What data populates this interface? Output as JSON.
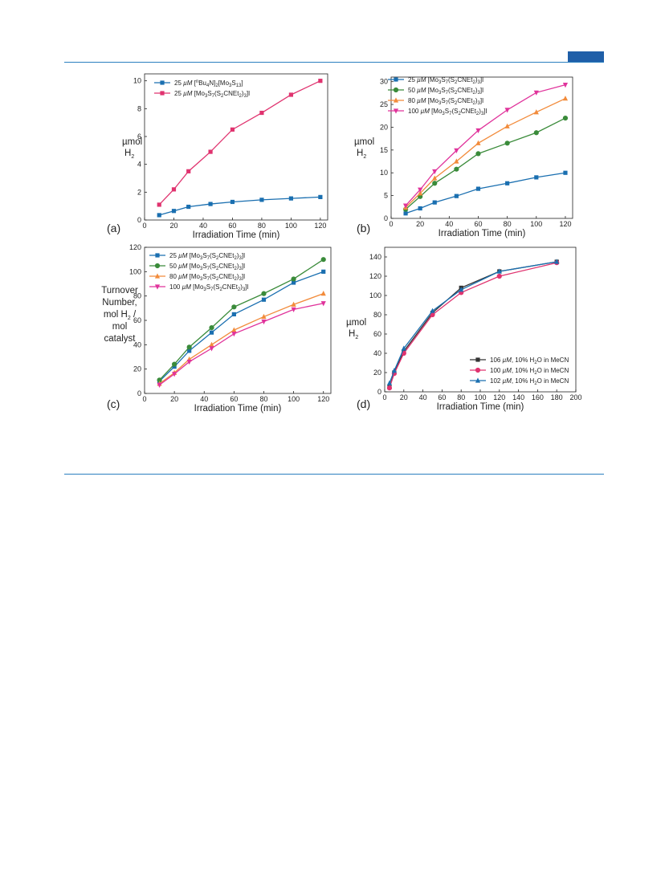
{
  "colors": {
    "accent": "#1f5fa8",
    "rule": "#2b7fbf"
  },
  "chart_data": [
    {
      "id": "a",
      "type": "line",
      "panel_label": "a",
      "xlabel": "Irradiation Time (min)",
      "ylabel_lines": [
        "µmol",
        "H",
        "2"
      ],
      "xlim": [
        0,
        125
      ],
      "ylim": [
        0,
        10.5
      ],
      "xticks": [
        0,
        20,
        40,
        60,
        80,
        100,
        120
      ],
      "yticks": [
        0,
        2,
        4,
        6,
        8,
        10
      ],
      "legend_position": "top-left",
      "series": [
        {
          "name": "25 µM [nBu4N]2[Mo3S13]",
          "legend_html": "25 <tspan font-style='italic'>µM</tspan> [<tspan font-size='6' dy='-3'>n</tspan><tspan dy='3'>Bu</tspan><tspan font-size='6' dy='2'>4</tspan><tspan dy='-2'>N]</tspan><tspan font-size='6' dy='2'>2</tspan><tspan dy='-2'>[Mo</tspan><tspan font-size='6' dy='2'>3</tspan><tspan dy='-2'>S</tspan><tspan font-size='6' dy='2'>13</tspan><tspan dy='-2'>]</tspan>",
          "color": "#1a6fb0",
          "marker": "square",
          "x": [
            10,
            20,
            30,
            45,
            60,
            80,
            100,
            120
          ],
          "y": [
            0.35,
            0.65,
            0.95,
            1.15,
            1.3,
            1.45,
            1.55,
            1.65
          ]
        },
        {
          "name": "25 µM [Mo3S7(S2CNEt2)3]I",
          "legend_html": "25 <tspan font-style='italic'>µM</tspan> [Mo<tspan font-size='6' dy='2'>3</tspan><tspan dy='-2'>S</tspan><tspan font-size='6' dy='2'>7</tspan><tspan dy='-2'>(S</tspan><tspan font-size='6' dy='2'>2</tspan><tspan dy='-2'>CNEt</tspan><tspan font-size='6' dy='2'>2</tspan><tspan dy='-2'>)</tspan><tspan font-size='6' dy='2'>3</tspan><tspan dy='-2'>]I</tspan>",
          "color": "#e0336f",
          "marker": "square",
          "x": [
            10,
            20,
            30,
            45,
            60,
            80,
            100,
            120
          ],
          "y": [
            1.1,
            2.2,
            3.5,
            4.9,
            6.5,
            7.7,
            9.0,
            10.0
          ]
        }
      ]
    },
    {
      "id": "b",
      "type": "line",
      "panel_label": "b",
      "xlabel": "Irradiation Time (min)",
      "ylabel_lines": [
        "µmol",
        "H",
        "2"
      ],
      "xlim": [
        0,
        125
      ],
      "ylim": [
        0,
        31
      ],
      "xticks": [
        0,
        20,
        40,
        60,
        80,
        100,
        120
      ],
      "yticks": [
        0,
        5,
        10,
        15,
        20,
        25,
        30
      ],
      "legend_position": "top-left",
      "series": [
        {
          "name": "25 µM [Mo3S7(S2CNEt2)3]I",
          "legend_html": "25 <tspan font-style='italic'>µM</tspan> [Mo<tspan font-size='6' dy='2'>3</tspan><tspan dy='-2'>S</tspan><tspan font-size='6' dy='2'>7</tspan><tspan dy='-2'>(S</tspan><tspan font-size='6' dy='2'>2</tspan><tspan dy='-2'>CNEt</tspan><tspan font-size='6' dy='2'>2</tspan><tspan dy='-2'>)</tspan><tspan font-size='6' dy='2'>3</tspan><tspan dy='-2'>]I</tspan>",
          "color": "#1a6fb0",
          "marker": "square",
          "x": [
            10,
            20,
            30,
            45,
            60,
            80,
            100,
            120
          ],
          "y": [
            1.1,
            2.2,
            3.5,
            4.9,
            6.5,
            7.7,
            9.0,
            10.0
          ]
        },
        {
          "name": "50 µM [Mo3S7(S2CNEt2)3]I",
          "legend_html": "50 <tspan font-style='italic'>µM</tspan> [Mo<tspan font-size='6' dy='2'>3</tspan><tspan dy='-2'>S</tspan><tspan font-size='6' dy='2'>7</tspan><tspan dy='-2'>(S</tspan><tspan font-size='6' dy='2'>2</tspan><tspan dy='-2'>CNEt</tspan><tspan font-size='6' dy='2'>2</tspan><tspan dy='-2'>)</tspan><tspan font-size='6' dy='2'>3</tspan><tspan dy='-2'>]I</tspan>",
          "color": "#3a8b3a",
          "marker": "circle",
          "x": [
            10,
            20,
            30,
            45,
            60,
            80,
            100,
            120
          ],
          "y": [
            2.0,
            4.8,
            7.7,
            10.8,
            14.2,
            16.5,
            18.8,
            22.0
          ]
        },
        {
          "name": "80 µM [Mo3S7(S2CNEt2)3]I",
          "legend_html": "80 <tspan font-style='italic'>µM</tspan> [Mo<tspan font-size='6' dy='2'>3</tspan><tspan dy='-2'>S</tspan><tspan font-size='6' dy='2'>7</tspan><tspan dy='-2'>(S</tspan><tspan font-size='6' dy='2'>2</tspan><tspan dy='-2'>CNEt</tspan><tspan font-size='6' dy='2'>2</tspan><tspan dy='-2'>)</tspan><tspan font-size='6' dy='2'>3</tspan><tspan dy='-2'>]I</tspan>",
          "color": "#f28b3b",
          "marker": "triangle",
          "x": [
            10,
            20,
            30,
            45,
            60,
            80,
            100,
            120
          ],
          "y": [
            2.4,
            5.5,
            8.8,
            12.5,
            16.5,
            20.2,
            23.3,
            26.3
          ]
        },
        {
          "name": "100 µM [Mo3S7(S2CNEt2)3]I",
          "legend_html": "100 <tspan font-style='italic'>µM</tspan> [Mo<tspan font-size='6' dy='2'>3</tspan><tspan dy='-2'>S</tspan><tspan font-size='6' dy='2'>7</tspan><tspan dy='-2'>(S</tspan><tspan font-size='6' dy='2'>2</tspan><tspan dy='-2'>CNEt</tspan><tspan font-size='6' dy='2'>2</tspan><tspan dy='-2'>)</tspan><tspan font-size='6' dy='2'>3</tspan><tspan dy='-2'>]I</tspan>",
          "color": "#e0339b",
          "marker": "triangle-down",
          "x": [
            10,
            20,
            30,
            45,
            60,
            80,
            100,
            120
          ],
          "y": [
            2.8,
            6.3,
            10.3,
            14.9,
            19.3,
            23.8,
            27.6,
            29.3
          ]
        }
      ]
    },
    {
      "id": "c",
      "type": "line",
      "panel_label": "c",
      "xlabel": "Irradiation Time (min)",
      "ylabel_lines": [
        "Turnover",
        "Number,",
        "mol H2 /",
        "mol",
        "catalyst"
      ],
      "xlim": [
        0,
        125
      ],
      "ylim": [
        0,
        120
      ],
      "xticks": [
        0,
        20,
        40,
        60,
        80,
        100,
        120
      ],
      "yticks": [
        0,
        20,
        40,
        60,
        80,
        100,
        120
      ],
      "legend_position": "top-left",
      "series": [
        {
          "name": "25 µM [Mo3S7(S2CNEt2)3]I",
          "legend_html": "25 <tspan font-style='italic'>µM</tspan> [Mo<tspan font-size='6' dy='2'>3</tspan><tspan dy='-2'>S</tspan><tspan font-size='6' dy='2'>7</tspan><tspan dy='-2'>(S</tspan><tspan font-size='6' dy='2'>2</tspan><tspan dy='-2'>CNEt</tspan><tspan font-size='6' dy='2'>2</tspan><tspan dy='-2'>)</tspan><tspan font-size='6' dy='2'>3</tspan><tspan dy='-2'>]I</tspan>",
          "color": "#1a6fb0",
          "marker": "square",
          "x": [
            10,
            20,
            30,
            45,
            60,
            80,
            100,
            120
          ],
          "y": [
            10,
            22,
            35,
            50,
            65,
            77,
            91,
            100
          ]
        },
        {
          "name": "50 µM [Mo3S7(S2CNEt2)3]I",
          "legend_html": "50 <tspan font-style='italic'>µM</tspan> [Mo<tspan font-size='6' dy='2'>3</tspan><tspan dy='-2'>S</tspan><tspan font-size='6' dy='2'>7</tspan><tspan dy='-2'>(S</tspan><tspan font-size='6' dy='2'>2</tspan><tspan dy='-2'>CNEt</tspan><tspan font-size='6' dy='2'>2</tspan><tspan dy='-2'>)</tspan><tspan font-size='6' dy='2'>3</tspan><tspan dy='-2'>]I</tspan>",
          "color": "#3a8b3a",
          "marker": "circle",
          "x": [
            10,
            20,
            30,
            45,
            60,
            80,
            100,
            120
          ],
          "y": [
            11,
            24,
            38,
            54,
            71,
            82,
            94,
            110
          ]
        },
        {
          "name": "80 µM [Mo3S7(S2CNEt2)3]I",
          "legend_html": "80 <tspan font-style='italic'>µM</tspan> [Mo<tspan font-size='6' dy='2'>3</tspan><tspan dy='-2'>S</tspan><tspan font-size='6' dy='2'>7</tspan><tspan dy='-2'>(S</tspan><tspan font-size='6' dy='2'>2</tspan><tspan dy='-2'>CNEt</tspan><tspan font-size='6' dy='2'>2</tspan><tspan dy='-2'>)</tspan><tspan font-size='6' dy='2'>3</tspan><tspan dy='-2'>]I</tspan>",
          "color": "#f28b3b",
          "marker": "triangle",
          "x": [
            10,
            20,
            30,
            45,
            60,
            80,
            100,
            120
          ],
          "y": [
            8,
            17,
            28,
            40,
            52,
            63,
            73,
            82
          ]
        },
        {
          "name": "100 µM [Mo3S7(S2CNEt2)3]I",
          "legend_html": "100 <tspan font-style='italic'>µM</tspan> [Mo<tspan font-size='6' dy='2'>3</tspan><tspan dy='-2'>S</tspan><tspan font-size='6' dy='2'>7</tspan><tspan dy='-2'>(S</tspan><tspan font-size='6' dy='2'>2</tspan><tspan dy='-2'>CNEt</tspan><tspan font-size='6' dy='2'>2</tspan><tspan dy='-2'>)</tspan><tspan font-size='6' dy='2'>3</tspan><tspan dy='-2'>]I</tspan>",
          "color": "#e0339b",
          "marker": "triangle-down",
          "x": [
            10,
            20,
            30,
            45,
            60,
            80,
            100,
            120
          ],
          "y": [
            7,
            16,
            26,
            37,
            49,
            59,
            69,
            74
          ]
        }
      ]
    },
    {
      "id": "d",
      "type": "line",
      "panel_label": "d",
      "xlabel": "Irradiation Time (min)",
      "ylabel_lines": [
        "µmol",
        "H",
        "2"
      ],
      "xlim": [
        0,
        200
      ],
      "ylim": [
        0,
        150
      ],
      "xticks": [
        0,
        20,
        40,
        60,
        80,
        100,
        120,
        140,
        160,
        180,
        200
      ],
      "yticks": [
        0,
        20,
        40,
        60,
        80,
        100,
        120,
        140
      ],
      "legend_position": "bottom-right",
      "series": [
        {
          "name": "106 µM, 10% H2O in MeCN",
          "legend_html": "106 <tspan font-style='italic'>µM</tspan>, 10% H<tspan font-size='6' dy='2'>2</tspan><tspan dy='-2'>O in MeCN</tspan>",
          "color": "#333333",
          "marker": "square",
          "x": [
            5,
            10,
            20,
            50,
            80,
            120,
            180
          ],
          "y": [
            5,
            20,
            42,
            82,
            108,
            125,
            135
          ]
        },
        {
          "name": "100 µM, 10% H2O in MeCN",
          "legend_html": "100 <tspan font-style='italic'>µM</tspan>, 10% H<tspan font-size='6' dy='2'>2</tspan><tspan dy='-2'>O in MeCN</tspan>",
          "color": "#e0336f",
          "marker": "circle",
          "x": [
            5,
            10,
            20,
            50,
            80,
            120,
            180
          ],
          "y": [
            4,
            19,
            40,
            80,
            103,
            120,
            134
          ]
        },
        {
          "name": "102 µM, 10% H2O in MeCN",
          "legend_html": "102 <tspan font-style='italic'>µM</tspan>, 10% H<tspan font-size='6' dy='2'>2</tspan><tspan dy='-2'>O in MeCN</tspan>",
          "color": "#1a6fb0",
          "marker": "triangle",
          "x": [
            5,
            10,
            20,
            50,
            80,
            120,
            180
          ],
          "y": [
            9,
            22,
            45,
            84,
            106,
            125,
            135
          ]
        }
      ]
    }
  ]
}
